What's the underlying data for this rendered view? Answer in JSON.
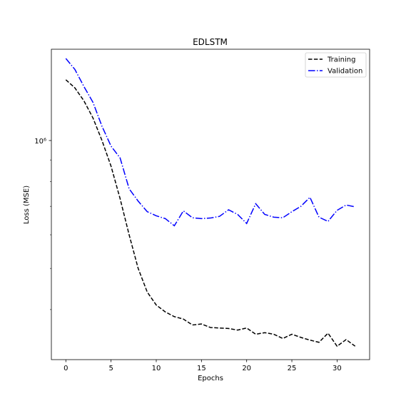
{
  "chart_data": {
    "type": "line",
    "title": "EDLSTM",
    "xlabel": "Epochs",
    "ylabel": "Loss (MSE)",
    "yscale": "log",
    "xlim": [
      -1.6,
      33.6
    ],
    "ylim": [
      305000,
      1640000
    ],
    "x_ticks": [
      0,
      5,
      10,
      15,
      20,
      25,
      30
    ],
    "y_tick_labels": [
      {
        "value": 1000000,
        "label": "10⁶"
      }
    ],
    "grid": false,
    "legend_position": "top-right",
    "x": [
      0,
      1,
      2,
      3,
      4,
      5,
      6,
      7,
      8,
      9,
      10,
      11,
      12,
      13,
      14,
      15,
      16,
      17,
      18,
      19,
      20,
      21,
      22,
      23,
      24,
      25,
      26,
      27,
      28,
      29,
      30,
      31,
      32
    ],
    "series": [
      {
        "name": "Training",
        "color": "#000000",
        "linestyle": "dashed",
        "values": [
          1390000,
          1330000,
          1240000,
          1130000,
          1000000,
          870000,
          730000,
          600000,
          500000,
          440000,
          410000,
          395000,
          385000,
          380000,
          368000,
          370000,
          363000,
          362000,
          361000,
          358000,
          362000,
          350000,
          353000,
          350000,
          342000,
          350000,
          344000,
          339000,
          335000,
          352000,
          328000,
          340000,
          328000
        ]
      },
      {
        "name": "Validation",
        "color": "#0000ff",
        "linestyle": "dashdot",
        "values": [
          1560000,
          1470000,
          1340000,
          1230000,
          1080000,
          970000,
          910000,
          770000,
          720000,
          680000,
          665000,
          655000,
          630000,
          683000,
          658000,
          655000,
          657000,
          663000,
          687000,
          670000,
          638000,
          710000,
          670000,
          660000,
          658000,
          680000,
          700000,
          735000,
          660000,
          645000,
          685000,
          705000,
          698000
        ]
      }
    ]
  }
}
